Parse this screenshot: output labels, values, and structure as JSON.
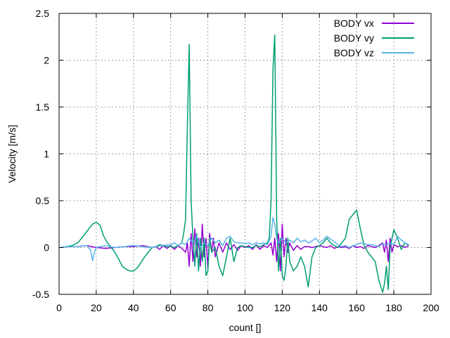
{
  "chart_data": {
    "type": "line",
    "title": "",
    "xlabel": "count []",
    "ylabel": "Velocity [m/s]",
    "xlim": [
      0,
      200
    ],
    "ylim": [
      -0.5,
      2.5
    ],
    "grid": true,
    "legend_position": "top-right",
    "x_ticks": [
      "0",
      "20",
      "40",
      "60",
      "80",
      "100",
      "120",
      "140",
      "160",
      "180",
      "200"
    ],
    "y_ticks": [
      "-0.5",
      "0",
      "0.5",
      "1",
      "1.5",
      "2",
      "2.5"
    ],
    "series": [
      {
        "name": "BODY vx",
        "color": "#9400d3",
        "x": [
          1,
          5,
          10,
          15,
          20,
          25,
          30,
          35,
          40,
          45,
          50,
          52,
          54,
          56,
          58,
          60,
          62,
          64,
          66,
          68,
          69,
          70,
          71,
          72,
          73,
          74,
          75,
          76,
          77,
          78,
          79,
          80,
          81,
          82,
          83,
          84,
          86,
          88,
          90,
          92,
          94,
          96,
          98,
          100,
          102,
          104,
          106,
          108,
          110,
          112,
          114,
          115,
          116,
          117,
          118,
          119,
          120,
          121,
          122,
          123,
          124,
          126,
          128,
          130,
          132,
          134,
          136,
          138,
          140,
          142,
          144,
          146,
          148,
          150,
          152,
          154,
          156,
          158,
          160,
          162,
          164,
          166,
          168,
          170,
          172,
          174,
          175,
          176,
          177,
          178,
          179,
          180,
          182,
          184,
          186,
          188
        ],
        "values": [
          0,
          0.01,
          0.01,
          0.02,
          0,
          -0.01,
          0,
          0.01,
          0.01,
          0.02,
          0,
          0.01,
          -0.02,
          0.02,
          -0.01,
          0.02,
          -0.02,
          0.02,
          -0.01,
          -0.05,
          0.05,
          -0.2,
          0.15,
          -0.15,
          0.2,
          -0.1,
          0.1,
          -0.2,
          0.25,
          -0.1,
          0.1,
          -0.22,
          0.15,
          -0.05,
          0.1,
          -0.1,
          0.05,
          -0.05,
          0.05,
          -0.02,
          0.03,
          -0.03,
          0.02,
          0,
          0.02,
          -0.02,
          0.03,
          -0.02,
          0.02,
          0,
          0.05,
          -0.08,
          0.1,
          -0.15,
          0.15,
          -0.25,
          0.25,
          -0.1,
          0.1,
          -0.05,
          0.05,
          -0.03,
          0.02,
          -0.02,
          0.01,
          0.01,
          0,
          0.01,
          0.02,
          0.01,
          0,
          0.02,
          -0.01,
          0.01,
          0,
          0.01,
          -0.01,
          0.02,
          0,
          0.01,
          -0.01,
          0.02,
          0.01,
          0,
          0.02,
          0.05,
          -0.05,
          0.08,
          -0.15,
          0.1,
          -0.05,
          0.03,
          0.01,
          0.02,
          0,
          0.02
        ]
      },
      {
        "name": "BODY vy",
        "color": "#009e73",
        "x": [
          1,
          4,
          7,
          10,
          13,
          16,
          18,
          20,
          22,
          24,
          26,
          28,
          30,
          32,
          34,
          36,
          38,
          40,
          42,
          44,
          46,
          48,
          50,
          52,
          54,
          56,
          58,
          60,
          62,
          64,
          66,
          67,
          68,
          69,
          70,
          71,
          72,
          73,
          74,
          75,
          76,
          77,
          78,
          79,
          80,
          81,
          82,
          84,
          86,
          88,
          90,
          92,
          94,
          96,
          98,
          100,
          102,
          104,
          106,
          108,
          110,
          112,
          113,
          114,
          115,
          116,
          117,
          118,
          119,
          120,
          121,
          122,
          123,
          124,
          126,
          128,
          130,
          132,
          134,
          136,
          138,
          140,
          142,
          144,
          146,
          148,
          150,
          152,
          154,
          156,
          158,
          160,
          162,
          164,
          166,
          168,
          170,
          172,
          174,
          175,
          176,
          177,
          178,
          180,
          182,
          184,
          186,
          188
        ],
        "values": [
          0,
          0.01,
          0.02,
          0.05,
          0.12,
          0.2,
          0.25,
          0.27,
          0.24,
          0.12,
          0.05,
          0,
          -0.05,
          -0.12,
          -0.2,
          -0.23,
          -0.25,
          -0.25,
          -0.22,
          -0.16,
          -0.1,
          -0.05,
          0,
          0.01,
          0.03,
          0.02,
          0.01,
          0.01,
          0,
          0.02,
          0.05,
          0.15,
          0.3,
          1.3,
          2.17,
          0.5,
          0.1,
          -0.2,
          0.15,
          -0.25,
          0.1,
          -0.15,
          0.1,
          -0.3,
          -0.25,
          0.1,
          -0.05,
          0,
          -0.2,
          -0.3,
          -0.1,
          0.1,
          -0.15,
          0,
          0.02,
          0.01,
          0,
          0,
          0.02,
          0.01,
          0.03,
          0.05,
          0.1,
          0.5,
          1.9,
          2.27,
          0.3,
          -0.25,
          0.1,
          -0.3,
          -0.35,
          -0.2,
          0.1,
          -0.15,
          -0.25,
          -0.2,
          -0.1,
          -0.2,
          -0.42,
          -0.1,
          0,
          0.02,
          0.05,
          0.1,
          0.05,
          0.02,
          0,
          0.05,
          0.1,
          0.3,
          0.35,
          0.4,
          0.2,
          0.02,
          -0.05,
          -0.1,
          -0.15,
          -0.35,
          -0.48,
          -0.38,
          -0.2,
          -0.45,
          0,
          0.19,
          0.1,
          -0.02,
          0.05,
          0.02
        ]
      },
      {
        "name": "BODY vz",
        "color": "#56b4e9",
        "x": [
          1,
          5,
          10,
          15,
          17,
          18,
          19,
          20,
          22,
          25,
          30,
          35,
          40,
          45,
          50,
          55,
          60,
          62,
          64,
          66,
          68,
          70,
          72,
          74,
          76,
          78,
          80,
          82,
          84,
          86,
          88,
          90,
          92,
          94,
          96,
          98,
          100,
          102,
          104,
          106,
          108,
          110,
          112,
          114,
          115,
          116,
          117,
          118,
          120,
          122,
          124,
          126,
          128,
          130,
          132,
          134,
          136,
          138,
          140,
          142,
          144,
          146,
          148,
          150,
          152,
          154,
          156,
          158,
          160,
          162,
          164,
          166,
          168,
          170,
          172,
          174,
          176,
          178,
          180,
          182,
          184,
          186,
          188
        ],
        "values": [
          0,
          0.01,
          0.01,
          0.02,
          -0.03,
          -0.14,
          -0.05,
          0,
          0.01,
          0.02,
          0,
          0.01,
          0.02,
          0.01,
          0,
          0.02,
          0.03,
          0.05,
          0.02,
          0.05,
          0.03,
          0.1,
          0.05,
          0.12,
          0,
          0.05,
          0.02,
          0.1,
          0.05,
          0.08,
          0.02,
          0.1,
          0.12,
          0.06,
          0.05,
          0.05,
          0.04,
          0.05,
          0.03,
          0.05,
          0.04,
          0.05,
          0.03,
          0.12,
          0.32,
          0.25,
          0.1,
          0.05,
          0.1,
          0.05,
          0.08,
          0.05,
          0.1,
          0.06,
          0.08,
          0.05,
          0.07,
          0.1,
          0.05,
          0.08,
          0.12,
          0.09,
          0.06,
          0.03,
          0.01,
          0.02,
          0,
          0.02,
          0.03,
          0.05,
          0.04,
          0.03,
          0.03,
          0.02,
          0.01,
          0.04,
          0.03,
          0.05,
          0.03,
          0.12,
          0.08,
          0.05,
          0.03
        ]
      }
    ]
  }
}
